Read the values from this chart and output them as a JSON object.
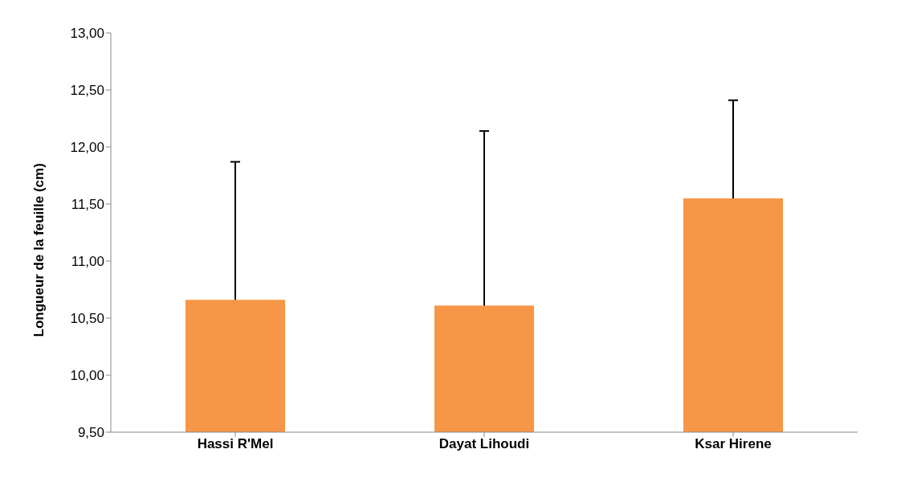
{
  "chart_data": {
    "type": "bar",
    "ylabel": "Longueur de la feuille (cm)",
    "categories": [
      "Hassi R'Mel",
      "Dayat Lihoudi",
      "Ksar Hirene"
    ],
    "values": [
      10.66,
      10.61,
      11.55
    ],
    "errors": [
      [
        10.66,
        11.87
      ],
      [
        10.61,
        12.14
      ],
      [
        11.55,
        12.41
      ]
    ],
    "color": "#f79646",
    "ylim": [
      9.5,
      13
    ],
    "yticks": [
      {
        "value": 9.5,
        "label": "9,50"
      },
      {
        "value": 10,
        "label": "10,00"
      },
      {
        "value": 10.5,
        "label": "10,50"
      },
      {
        "value": 11,
        "label": "11,00"
      },
      {
        "value": 11.5,
        "label": "11,50"
      },
      {
        "value": 12,
        "label": "12,00"
      },
      {
        "value": 12.5,
        "label": "12,50"
      },
      {
        "value": 13,
        "label": "13,00"
      }
    ],
    "grid": false,
    "legend": false
  }
}
